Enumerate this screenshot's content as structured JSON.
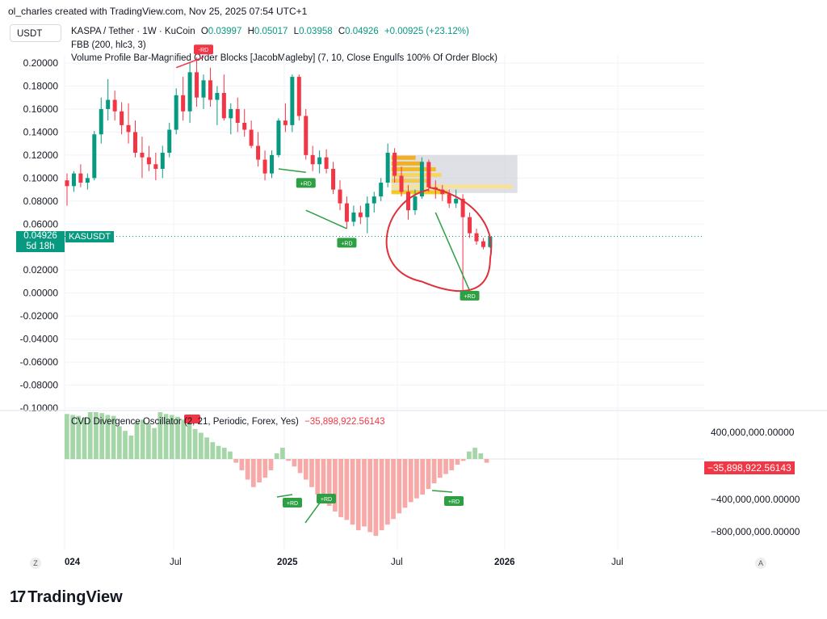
{
  "header": {
    "text": "ol_charles created with TradingView.com, Nov 25, 2025 07:54 UTC+1"
  },
  "symbol_box": {
    "label": "USDT"
  },
  "legend": {
    "line1_title": "KASPA / Tether · 1W · KuCoin",
    "open_label": "O",
    "open": "0.03997",
    "high_label": "H",
    "high": "0.05017",
    "low_label": "L",
    "low": "0.03958",
    "close_label": "C",
    "close": "0.04926",
    "change": "+0.00925 (+23.12%)",
    "line2": "FBB (200, hlc3, 3)",
    "line3": "Volume Profile Bar-Magnified Order Blocks [JacobMagleby] (7, 10, Close Engulfs 100% Of Order Block)"
  },
  "price_tag": {
    "value": "0.04926",
    "time": "5d 18h",
    "symbol": "KASUSDT"
  },
  "oscillator": {
    "title": "CVD Divergence Oscillator (2, 21, Periodic, Forex, Yes)",
    "value": "−35,898,922.56143",
    "axis_labels": [
      "400,000,000.00000",
      "−400,000,000.00000",
      "−800,000,000.00000"
    ]
  },
  "badges": {
    "bull": "+RD",
    "bear": "-RD"
  },
  "x_labels": [
    {
      "text": "024",
      "bold": true
    },
    {
      "text": "Jul",
      "bold": false
    },
    {
      "text": "2025",
      "bold": true
    },
    {
      "text": "Jul",
      "bold": false
    },
    {
      "text": "2026",
      "bold": true
    },
    {
      "text": "Jul",
      "bold": false
    }
  ],
  "buttons": {
    "left": "Z",
    "right": "A"
  },
  "brand": {
    "name": "TradingView",
    "mark": "17"
  },
  "colors": {
    "up": "#089981",
    "down": "#f23645",
    "osc_pos": "#a5d6a7",
    "osc_neg": "#f7a9a7",
    "annotation": "#e0303a"
  },
  "chart_data": {
    "type": "candlestick",
    "timeframe": "1W",
    "ylim": [
      -0.1,
      0.2
    ],
    "y_ticks": [
      "0.20000",
      "0.18000",
      "0.16000",
      "0.14000",
      "0.12000",
      "0.10000",
      "0.08000",
      "0.06000",
      "0.02000",
      "0.00000",
      "-0.02000",
      "-0.04000",
      "-0.06000",
      "-0.08000",
      "-0.10000"
    ],
    "last_close": 0.04926,
    "candles": [
      [
        0.098,
        0.104,
        0.076,
        0.093
      ],
      [
        0.093,
        0.106,
        0.088,
        0.104
      ],
      [
        0.104,
        0.112,
        0.092,
        0.096
      ],
      [
        0.096,
        0.104,
        0.09,
        0.1
      ],
      [
        0.1,
        0.141,
        0.098,
        0.138
      ],
      [
        0.138,
        0.17,
        0.13,
        0.16
      ],
      [
        0.16,
        0.186,
        0.15,
        0.168
      ],
      [
        0.168,
        0.176,
        0.15,
        0.158
      ],
      [
        0.158,
        0.166,
        0.138,
        0.146
      ],
      [
        0.146,
        0.165,
        0.13,
        0.14
      ],
      [
        0.14,
        0.15,
        0.118,
        0.122
      ],
      [
        0.122,
        0.136,
        0.1,
        0.118
      ],
      [
        0.118,
        0.128,
        0.106,
        0.112
      ],
      [
        0.112,
        0.122,
        0.098,
        0.108
      ],
      [
        0.108,
        0.128,
        0.1,
        0.122
      ],
      [
        0.122,
        0.148,
        0.118,
        0.142
      ],
      [
        0.142,
        0.178,
        0.138,
        0.172
      ],
      [
        0.172,
        0.188,
        0.15,
        0.158
      ],
      [
        0.158,
        0.2,
        0.148,
        0.192
      ],
      [
        0.192,
        0.205,
        0.162,
        0.17
      ],
      [
        0.17,
        0.19,
        0.16,
        0.185
      ],
      [
        0.185,
        0.196,
        0.162,
        0.168
      ],
      [
        0.168,
        0.18,
        0.146,
        0.174
      ],
      [
        0.174,
        0.19,
        0.15,
        0.152
      ],
      [
        0.152,
        0.165,
        0.138,
        0.16
      ],
      [
        0.16,
        0.17,
        0.14,
        0.148
      ],
      [
        0.148,
        0.16,
        0.136,
        0.142
      ],
      [
        0.142,
        0.15,
        0.126,
        0.128
      ],
      [
        0.128,
        0.14,
        0.11,
        0.116
      ],
      [
        0.116,
        0.124,
        0.098,
        0.104
      ],
      [
        0.104,
        0.124,
        0.1,
        0.12
      ],
      [
        0.12,
        0.152,
        0.118,
        0.15
      ],
      [
        0.15,
        0.165,
        0.14,
        0.146
      ],
      [
        0.146,
        0.19,
        0.14,
        0.188
      ],
      [
        0.188,
        0.19,
        0.15,
        0.154
      ],
      [
        0.154,
        0.16,
        0.116,
        0.12
      ],
      [
        0.12,
        0.128,
        0.106,
        0.112
      ],
      [
        0.112,
        0.124,
        0.104,
        0.118
      ],
      [
        0.118,
        0.125,
        0.104,
        0.108
      ],
      [
        0.108,
        0.114,
        0.086,
        0.09
      ],
      [
        0.09,
        0.098,
        0.072,
        0.078
      ],
      [
        0.078,
        0.084,
        0.056,
        0.062
      ],
      [
        0.062,
        0.076,
        0.058,
        0.07
      ],
      [
        0.07,
        0.076,
        0.06,
        0.066
      ],
      [
        0.066,
        0.084,
        0.052,
        0.078
      ],
      [
        0.078,
        0.088,
        0.07,
        0.084
      ],
      [
        0.084,
        0.1,
        0.08,
        0.096
      ],
      [
        0.096,
        0.13,
        0.092,
        0.122
      ],
      [
        0.122,
        0.126,
        0.096,
        0.102
      ],
      [
        0.102,
        0.11,
        0.084,
        0.088
      ],
      [
        0.088,
        0.094,
        0.064,
        0.072
      ],
      [
        0.072,
        0.09,
        0.068,
        0.084
      ],
      [
        0.084,
        0.118,
        0.082,
        0.114
      ],
      [
        0.114,
        0.116,
        0.088,
        0.092
      ],
      [
        0.092,
        0.098,
        0.082,
        0.09
      ],
      [
        0.09,
        0.094,
        0.08,
        0.086
      ],
      [
        0.086,
        0.09,
        0.074,
        0.078
      ],
      [
        0.078,
        0.09,
        0.074,
        0.082
      ],
      [
        0.082,
        0.086,
        0.0,
        0.066
      ],
      [
        0.066,
        0.07,
        0.048,
        0.052
      ],
      [
        0.052,
        0.056,
        0.042,
        0.045
      ],
      [
        0.045,
        0.048,
        0.038,
        0.04
      ],
      [
        0.04,
        0.05,
        0.039,
        0.049
      ]
    ],
    "badges": [
      {
        "type": "bear",
        "candle": 20,
        "price": 0.216
      },
      {
        "type": "bull",
        "candle": 35,
        "price": 0.1
      },
      {
        "type": "bull",
        "candle": 41,
        "price": 0.048
      },
      {
        "type": "bull",
        "candle": 59,
        "price": 0.002
      }
    ],
    "oscillator": {
      "ylim": [
        -1000000000,
        500000000
      ],
      "last": -35898922.56,
      "values": [
        480,
        470,
        460,
        440,
        500,
        520,
        490,
        470,
        460,
        350,
        300,
        250,
        400,
        420,
        380,
        330,
        500,
        480,
        470,
        450,
        420,
        380,
        320,
        280,
        230,
        180,
        140,
        120,
        80,
        -40,
        -120,
        -220,
        -300,
        -250,
        -200,
        -120,
        60,
        120,
        -20,
        -80,
        -150,
        -220,
        -300,
        -380,
        -420,
        -500,
        -560,
        -620,
        -650,
        -700,
        -760,
        -720,
        -780,
        -820,
        -760,
        -700,
        -640,
        -580,
        -520,
        -460,
        -420,
        -380,
        -320,
        -260,
        -200,
        -160,
        -120,
        -60,
        -20,
        80,
        120,
        60,
        -40
      ]
    }
  }
}
